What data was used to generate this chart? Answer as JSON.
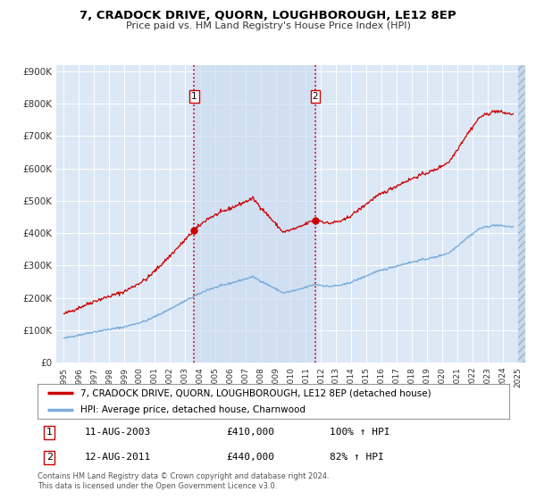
{
  "title": "7, CRADOCK DRIVE, QUORN, LOUGHBOROUGH, LE12 8EP",
  "subtitle": "Price paid vs. HM Land Registry's House Price Index (HPI)",
  "legend_line1": "7, CRADOCK DRIVE, QUORN, LOUGHBOROUGH, LE12 8EP (detached house)",
  "legend_line2": "HPI: Average price, detached house, Charnwood",
  "red_line_color": "#cc0000",
  "blue_line_color": "#7aaddc",
  "background_color": "#ffffff",
  "plot_background_color": "#dce8f5",
  "grid_color": "#ffffff",
  "hatch_color": "#c8d8e8",
  "span_color": "#c8daf0",
  "purchase1": {
    "label": "1",
    "date": "11-AUG-2003",
    "price": 410000,
    "price_str": "£410,000",
    "percent": "100%",
    "direction": "↑",
    "x_year": 2003.62
  },
  "purchase2": {
    "label": "2",
    "date": "12-AUG-2011",
    "price": 440000,
    "price_str": "£440,000",
    "percent": "82%",
    "direction": "↑",
    "x_year": 2011.62
  },
  "xlim": [
    1994.5,
    2025.5
  ],
  "ylim": [
    0,
    920000
  ],
  "yticks": [
    0,
    100000,
    200000,
    300000,
    400000,
    500000,
    600000,
    700000,
    800000,
    900000
  ],
  "ytick_labels": [
    "£0",
    "£100K",
    "£200K",
    "£300K",
    "£400K",
    "£500K",
    "£600K",
    "£700K",
    "£800K",
    "£900K"
  ],
  "footnote": "Contains HM Land Registry data © Crown copyright and database right 2024.\nThis data is licensed under the Open Government Licence v3.0."
}
